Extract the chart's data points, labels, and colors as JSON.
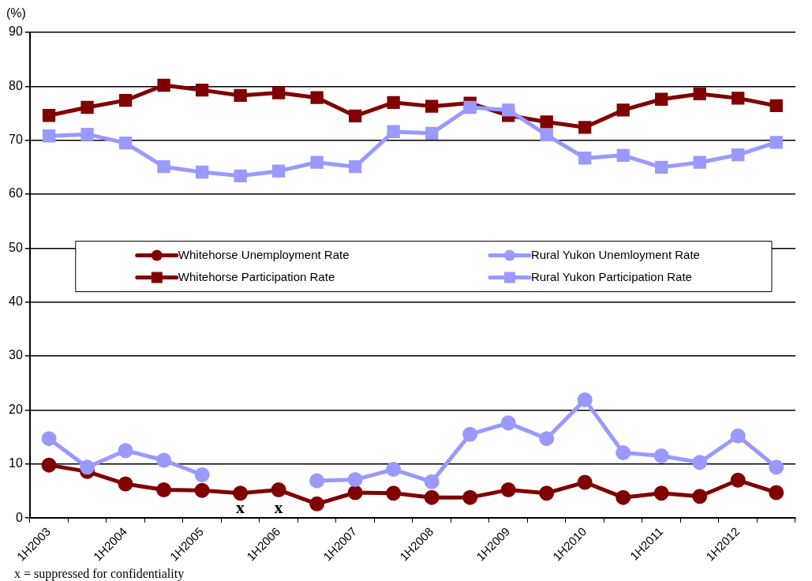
{
  "chart_data": {
    "type": "line",
    "ylabel": "(%)",
    "categories": [
      "1H2003",
      null,
      "1H2004",
      null,
      "1H2005",
      null,
      "1H2006",
      null,
      "1H2007",
      null,
      "1H2008",
      null,
      "1H2009",
      null,
      "1H2010",
      null,
      "1H2011",
      null,
      "1H2012",
      null
    ],
    "ylim": [
      0,
      90
    ],
    "yticks": [
      0,
      10,
      20,
      30,
      40,
      50,
      60,
      70,
      80,
      90
    ],
    "grid": "y",
    "legend": "center",
    "line_style": "solid",
    "annotations": [
      "x = suppressed for confidentiality"
    ],
    "series": [
      {
        "name": "Whitehorse Unemployment Rate",
        "color": "#800000",
        "marker": "circle",
        "values": [
          9.8,
          8.6,
          6.3,
          5.2,
          5.1,
          4.6,
          5.2,
          2.6,
          4.7,
          4.6,
          3.8,
          3.8,
          5.2,
          4.6,
          6.6,
          3.8,
          4.6,
          4.0,
          7.0,
          4.7
        ]
      },
      {
        "name": "Rural Yukon Unemloyment Rate",
        "color": "#9999ff",
        "marker": "circle",
        "values": [
          14.7,
          9.4,
          12.5,
          10.7,
          8.0,
          null,
          null,
          6.9,
          7.1,
          9.0,
          6.7,
          15.5,
          17.6,
          14.7,
          21.9,
          12.1,
          11.5,
          10.3,
          15.2,
          9.4
        ],
        "value_labels": [
          null,
          null,
          null,
          null,
          null,
          "x",
          "x",
          null,
          null,
          null,
          null,
          null,
          null,
          null,
          null,
          null,
          null,
          null,
          null,
          null
        ]
      },
      {
        "name": "Whitehorse Participation Rate",
        "color": "#800000",
        "marker": "square",
        "values": [
          74.6,
          76.1,
          77.4,
          80.2,
          79.3,
          78.3,
          78.8,
          77.9,
          74.5,
          77.0,
          76.3,
          76.9,
          74.6,
          73.4,
          72.4,
          75.6,
          77.6,
          78.6,
          77.8,
          76.4
        ]
      },
      {
        "name": "Rural Yukon Participation Rate",
        "color": "#9999ff",
        "marker": "square",
        "values": [
          70.8,
          71.1,
          69.5,
          65.1,
          64.1,
          63.4,
          64.3,
          65.9,
          65.1,
          71.6,
          71.3,
          76.1,
          75.6,
          71.0,
          66.7,
          67.2,
          65.0,
          65.9,
          67.3,
          69.6
        ]
      }
    ]
  }
}
